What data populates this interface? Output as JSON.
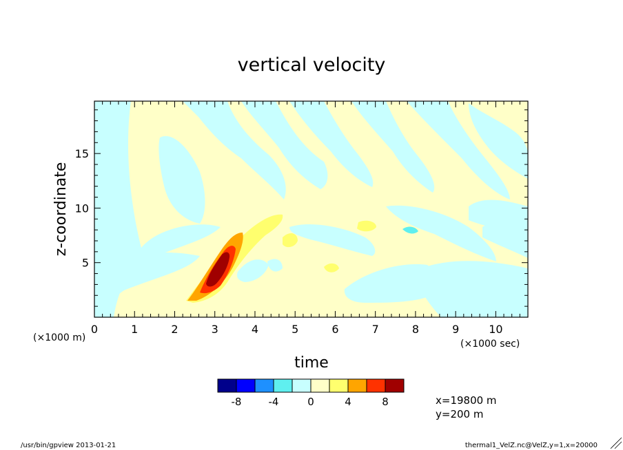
{
  "chart_data": {
    "type": "heatmap",
    "title": "vertical velocity",
    "xlabel": "time",
    "ylabel": "z-coordinate",
    "x_unit_label": "(×1000 sec)",
    "y_unit_label": "(×1000 m)",
    "xlim": [
      0,
      10.8
    ],
    "ylim": [
      0,
      19.8
    ],
    "x_ticks": [
      "0",
      "1",
      "2",
      "3",
      "4",
      "5",
      "6",
      "7",
      "8",
      "9",
      "10"
    ],
    "y_ticks": [
      "5",
      "10",
      "15"
    ],
    "colorbar": {
      "levels": [
        -10,
        -8,
        -6,
        -4,
        -2,
        0,
        2,
        4,
        6,
        8,
        10
      ],
      "labels": [
        "-8",
        "-4",
        "0",
        "4",
        "8"
      ],
      "colors": [
        "#00008b",
        "#0000ff",
        "#1e90ff",
        "#5fefef",
        "#c8ffff",
        "#ffffc8",
        "#ffff6e",
        "#ffa500",
        "#ff3200",
        "#a00000"
      ]
    },
    "features": [
      {
        "name": "updraft core",
        "t": 3.0,
        "z": 4.2,
        "max_value": 8
      },
      {
        "name": "updraft plume",
        "t_range": [
          1.6,
          4.6
        ],
        "z_range": [
          0.5,
          9.5
        ],
        "value_range": [
          2,
          8
        ]
      },
      {
        "name": "weak updraft",
        "t": 4.8,
        "z": 7.2,
        "value": 2.5
      },
      {
        "name": "weak updraft",
        "t": 6.7,
        "z": 8.2,
        "value": 2.5
      },
      {
        "name": "weak updraft",
        "t": 5.9,
        "z": 4.5,
        "value": 2.5
      },
      {
        "name": "weak downdraft",
        "t": 7.8,
        "z": 8.0,
        "value": -4
      }
    ],
    "annotations": [
      "x=19800 m",
      "y=200 m"
    ]
  },
  "footer": {
    "left": "/usr/bin/gpview  2013-01-21",
    "right": "thermal1_VelZ.nc@VelZ,y=1,x=20000"
  }
}
